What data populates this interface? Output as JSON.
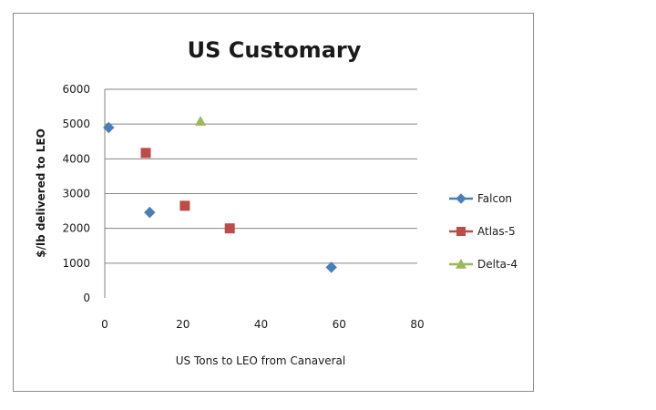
{
  "chart_data": {
    "type": "scatter",
    "title": "US Customary",
    "xlabel": "US Tons to LEO from Canaveral",
    "ylabel": "$/lb delivered to LEO",
    "xlim": [
      0,
      80
    ],
    "ylim": [
      0,
      6000
    ],
    "x_ticks": [
      "0",
      "20",
      "40",
      "60",
      "80"
    ],
    "y_ticks": [
      "0",
      "1000",
      "2000",
      "3000",
      "4000",
      "5000",
      "6000"
    ],
    "grid": "horizontal",
    "legend_position": "right",
    "series": [
      {
        "name": "Falcon",
        "color": "#4a7ebb",
        "marker": "diamond",
        "points": [
          {
            "x": 1,
            "y": 4900
          },
          {
            "x": 11.5,
            "y": 2460
          },
          {
            "x": 58,
            "y": 880
          }
        ]
      },
      {
        "name": "Atlas-5",
        "color": "#be4b48",
        "marker": "square",
        "points": [
          {
            "x": 10.5,
            "y": 4170
          },
          {
            "x": 20.5,
            "y": 2650
          },
          {
            "x": 32,
            "y": 2000
          }
        ]
      },
      {
        "name": "Delta-4",
        "color": "#98b954",
        "marker": "triangle",
        "points": [
          {
            "x": 24.5,
            "y": 5080
          }
        ]
      }
    ]
  }
}
